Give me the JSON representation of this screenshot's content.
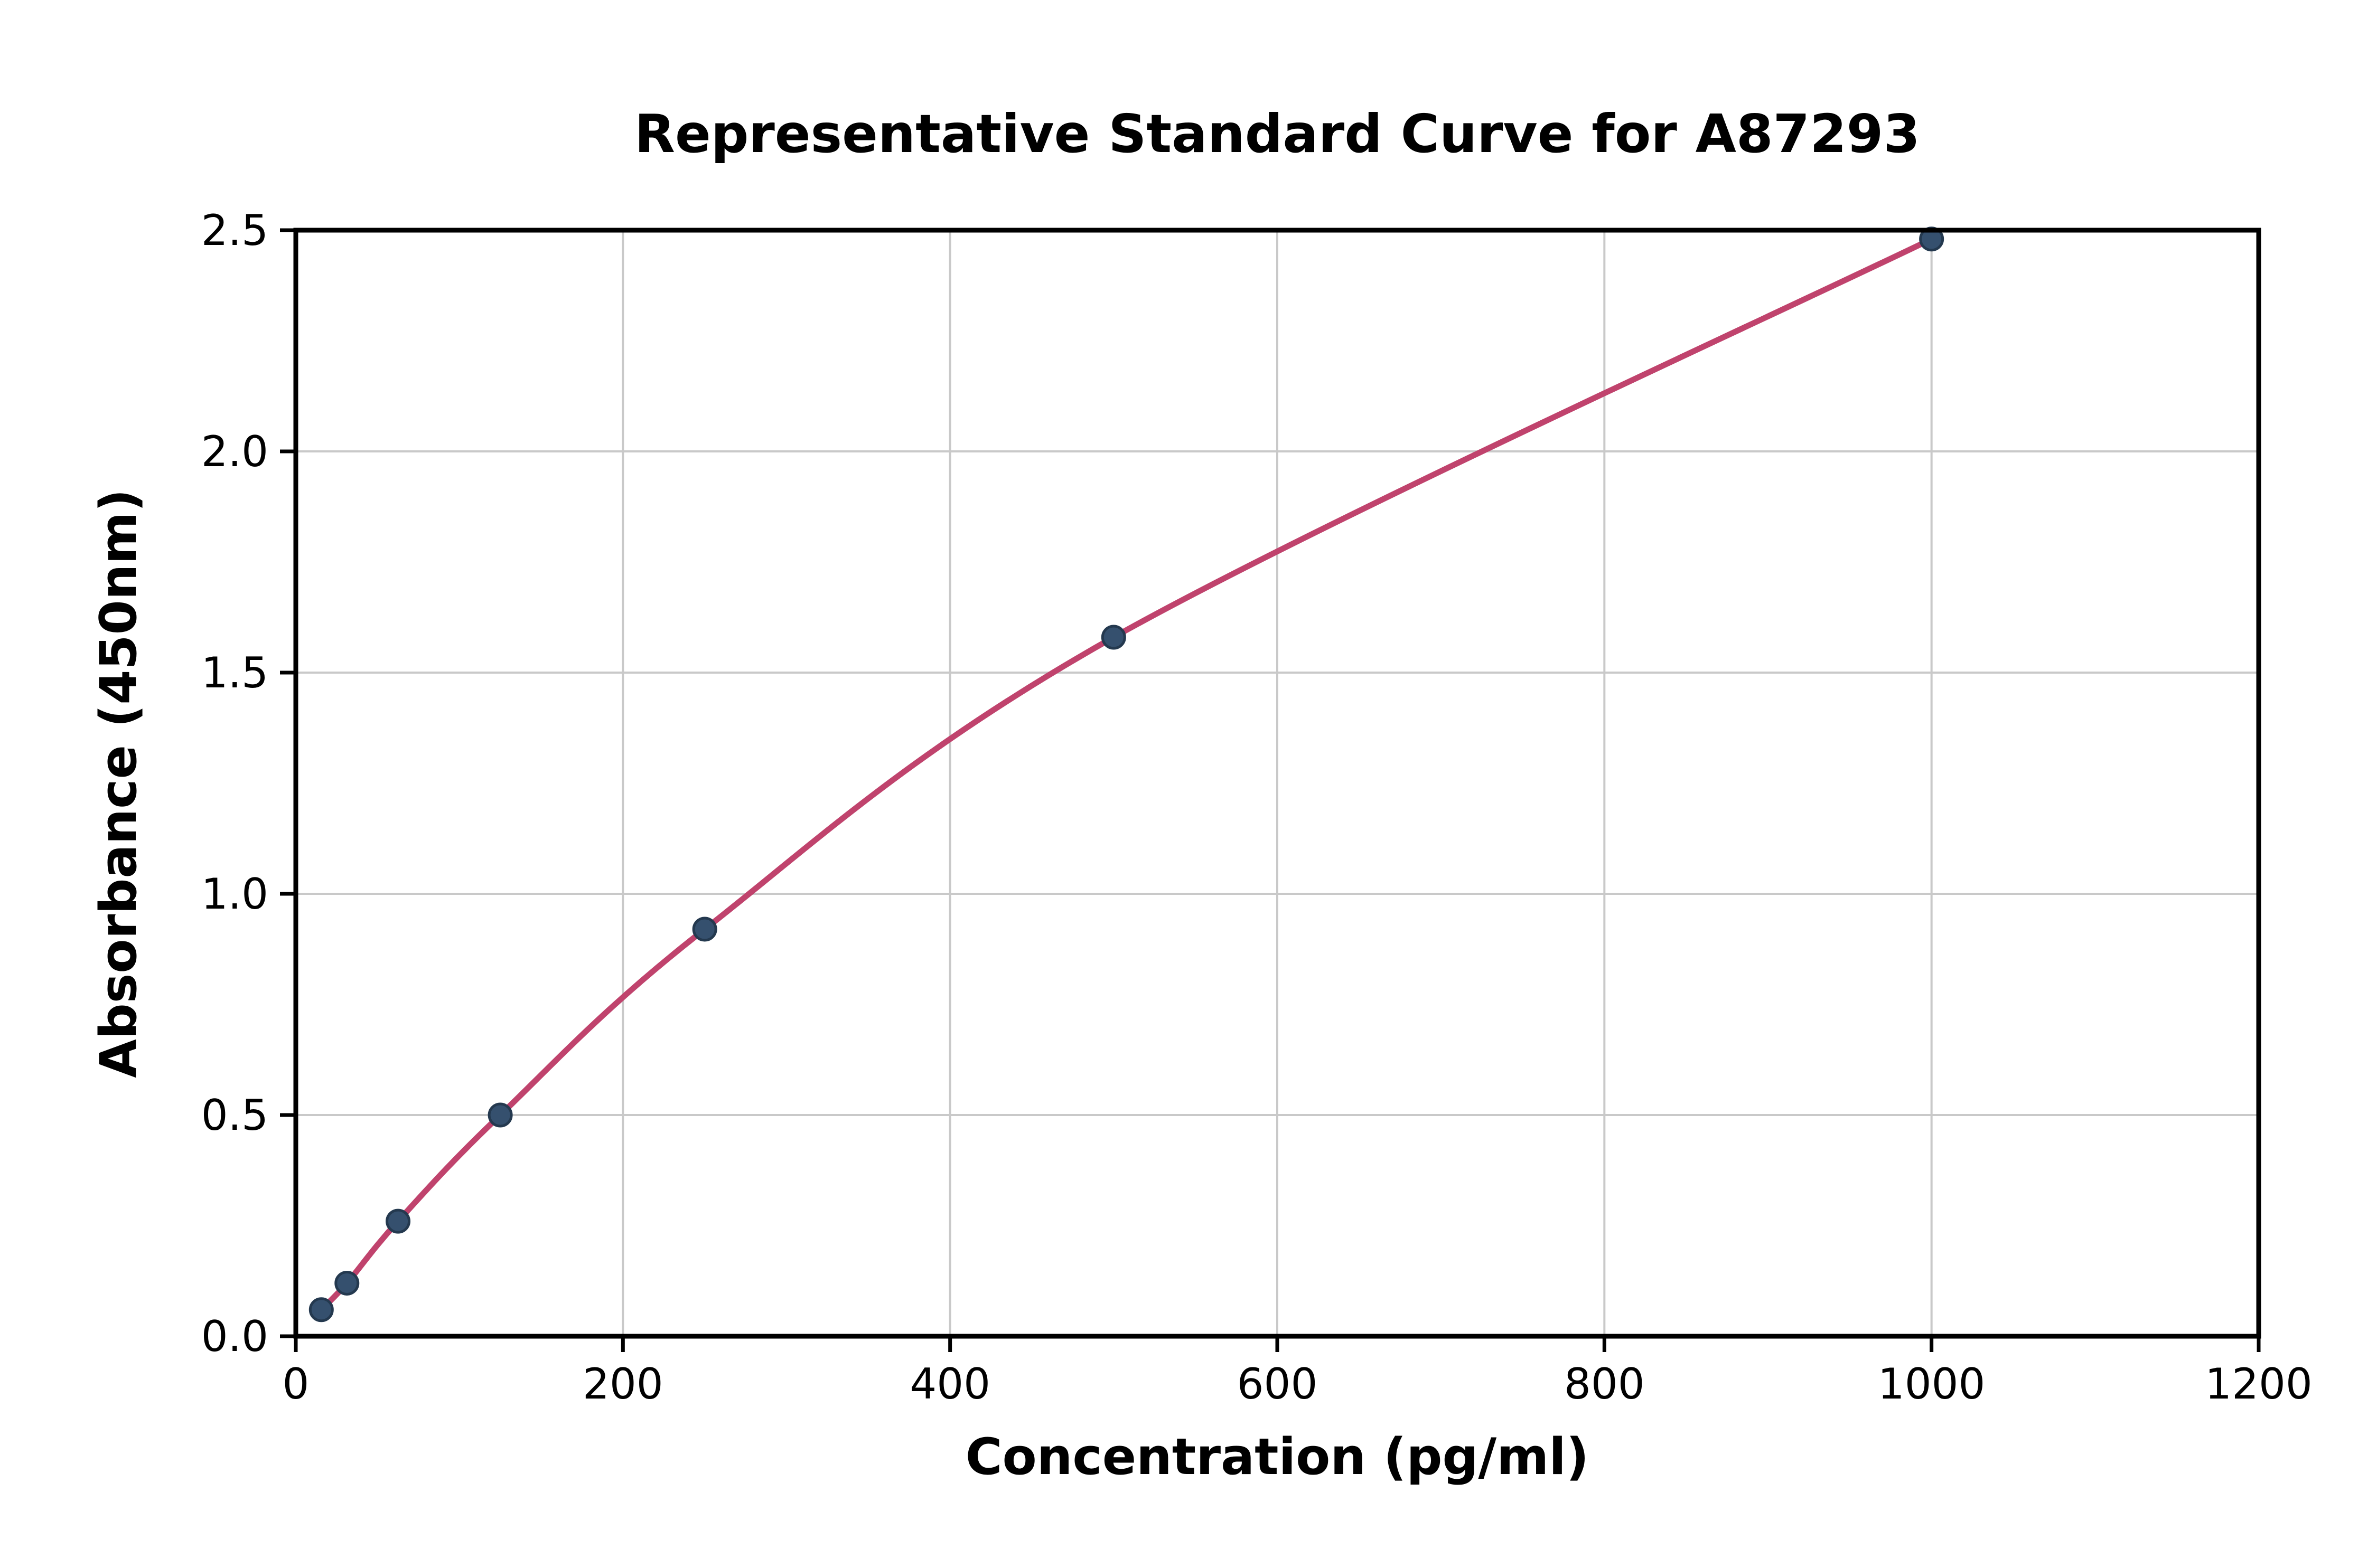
{
  "chart_data": {
    "type": "scatter",
    "title": "Representative Standard Curve for A87293",
    "xlabel": "Concentration (pg/ml)",
    "ylabel": "Absorbance (450nm)",
    "xlim": [
      0,
      1200
    ],
    "ylim": [
      0,
      2.5
    ],
    "x_ticks": [
      0,
      200,
      400,
      600,
      800,
      1000,
      1200
    ],
    "x_tick_labels": [
      "0",
      "200",
      "400",
      "600",
      "800",
      "1000",
      "1200"
    ],
    "y_ticks": [
      0.0,
      0.5,
      1.0,
      1.5,
      2.0,
      2.5
    ],
    "y_tick_labels": [
      "0.0",
      "0.5",
      "1.0",
      "1.5",
      "2.0",
      "2.5"
    ],
    "grid": true,
    "legend_position": "none",
    "points": [
      [
        15.6,
        0.06
      ],
      [
        31.25,
        0.12
      ],
      [
        62.5,
        0.26
      ],
      [
        125,
        0.5
      ],
      [
        250,
        0.92
      ],
      [
        500,
        1.58
      ],
      [
        1000,
        2.48
      ]
    ],
    "curve_color": "#c0436d",
    "point_color": "#35506e",
    "point_edge_color": "#24394f",
    "grid_color": "#c9c9c9",
    "axis_color": "#000000",
    "text_color": "#000000"
  }
}
